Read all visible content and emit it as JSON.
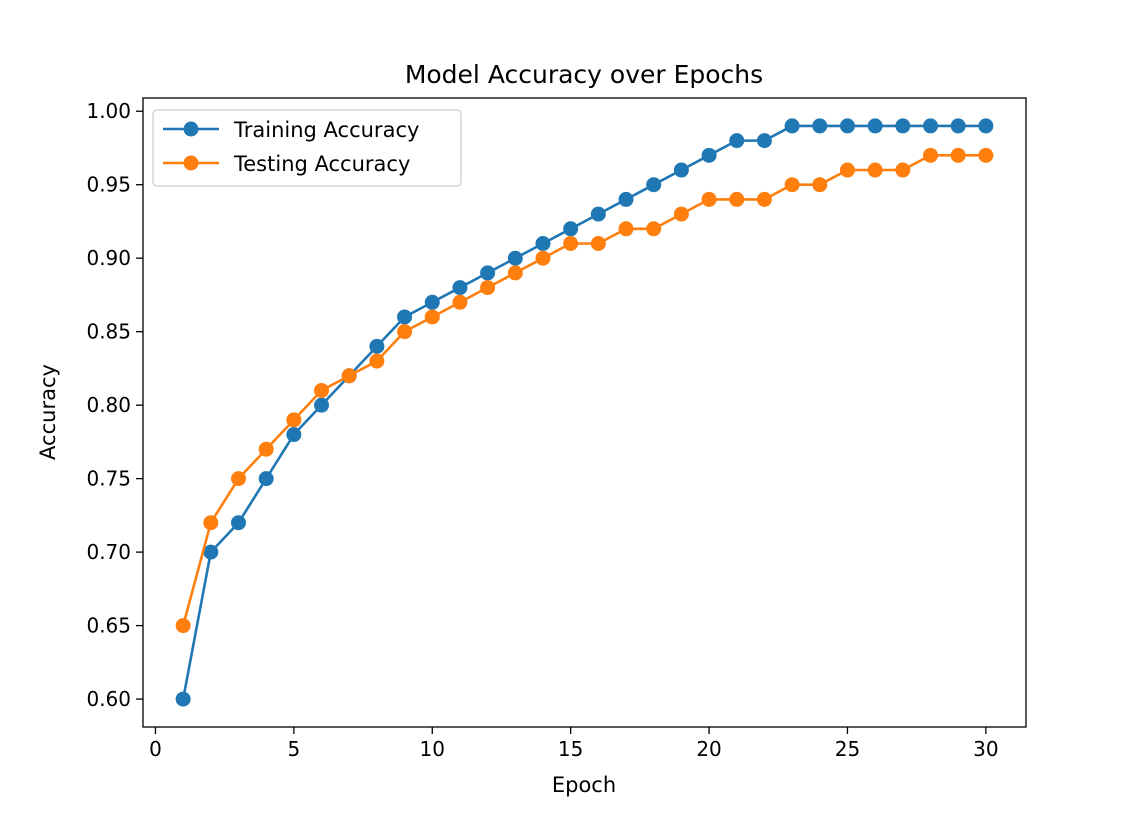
{
  "chart_data": {
    "type": "line",
    "title": "Model Accuracy over Epochs",
    "xlabel": "Epoch",
    "ylabel": "Accuracy",
    "xlim": [
      -0.45,
      31.45
    ],
    "ylim": [
      0.581,
      1.009
    ],
    "xticks": [
      0,
      5,
      10,
      15,
      20,
      25,
      30
    ],
    "yticks": [
      0.6,
      0.65,
      0.7,
      0.75,
      0.8,
      0.85,
      0.9,
      0.95,
      1.0
    ],
    "ytick_labels": [
      "0.60",
      "0.65",
      "0.70",
      "0.75",
      "0.80",
      "0.85",
      "0.90",
      "0.95",
      "1.00"
    ],
    "grid": false,
    "legend_position": "top-left",
    "x": [
      1,
      2,
      3,
      4,
      5,
      6,
      7,
      8,
      9,
      10,
      11,
      12,
      13,
      14,
      15,
      16,
      17,
      18,
      19,
      20,
      21,
      22,
      23,
      24,
      25,
      26,
      27,
      28,
      29,
      30
    ],
    "series": [
      {
        "name": "Training Accuracy",
        "color": "#1f77b4",
        "values": [
          0.6,
          0.7,
          0.72,
          0.75,
          0.78,
          0.8,
          0.82,
          0.84,
          0.86,
          0.87,
          0.88,
          0.89,
          0.9,
          0.91,
          0.92,
          0.93,
          0.94,
          0.95,
          0.96,
          0.97,
          0.98,
          0.98,
          0.99,
          0.99,
          0.99,
          0.99,
          0.99,
          0.99,
          0.99,
          0.99
        ]
      },
      {
        "name": "Testing Accuracy",
        "color": "#ff7f0e",
        "values": [
          0.65,
          0.72,
          0.75,
          0.77,
          0.79,
          0.81,
          0.82,
          0.83,
          0.85,
          0.86,
          0.87,
          0.88,
          0.89,
          0.9,
          0.91,
          0.91,
          0.92,
          0.92,
          0.93,
          0.94,
          0.94,
          0.94,
          0.95,
          0.95,
          0.96,
          0.96,
          0.96,
          0.97,
          0.97,
          0.97
        ]
      }
    ]
  }
}
